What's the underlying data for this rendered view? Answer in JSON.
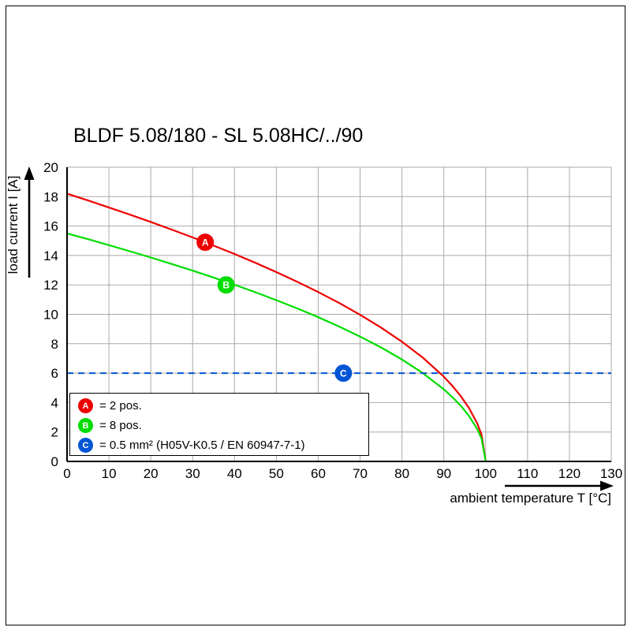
{
  "chart_data": {
    "type": "line",
    "title": "BLDF 5.08/180 - SL 5.08HC/../90",
    "xlabel": "ambient temperature T [°C]",
    "ylabel": "load current I [A]",
    "xlim": [
      0,
      130
    ],
    "ylim": [
      0,
      20
    ],
    "xticks": [
      0,
      10,
      20,
      30,
      40,
      50,
      60,
      70,
      80,
      90,
      100,
      110,
      120,
      130
    ],
    "yticks": [
      0,
      2,
      4,
      6,
      8,
      10,
      12,
      14,
      16,
      18,
      20
    ],
    "grid": true,
    "grid_color": "#a9a9a9",
    "axis_color": "#000000",
    "legend_position": "bottom-left",
    "series": [
      {
        "name": "A",
        "legend_label": "= 2 pos.",
        "color": "#ee0000",
        "marker_pos": {
          "x": 33,
          "y": 14.9
        },
        "points": [
          [
            0,
            18.2
          ],
          [
            5,
            17.74
          ],
          [
            10,
            17.26
          ],
          [
            15,
            16.78
          ],
          [
            20,
            16.28
          ],
          [
            25,
            15.76
          ],
          [
            30,
            15.23
          ],
          [
            35,
            14.67
          ],
          [
            40,
            14.1
          ],
          [
            45,
            13.5
          ],
          [
            50,
            12.87
          ],
          [
            55,
            12.21
          ],
          [
            60,
            11.51
          ],
          [
            65,
            10.77
          ],
          [
            70,
            9.97
          ],
          [
            75,
            9.1
          ],
          [
            80,
            8.14
          ],
          [
            85,
            7.05
          ],
          [
            90,
            5.76
          ],
          [
            92,
            5.15
          ],
          [
            94,
            4.46
          ],
          [
            96,
            3.64
          ],
          [
            98,
            2.57
          ],
          [
            99,
            1.82
          ],
          [
            100,
            0
          ]
        ]
      },
      {
        "name": "B",
        "legend_label": "= 8 pos.",
        "color": "#00dd00",
        "marker_pos": {
          "x": 38,
          "y": 12.0
        },
        "points": [
          [
            0,
            15.5
          ],
          [
            5,
            15.11
          ],
          [
            10,
            14.7
          ],
          [
            15,
            14.29
          ],
          [
            20,
            13.86
          ],
          [
            25,
            13.42
          ],
          [
            30,
            12.97
          ],
          [
            35,
            12.5
          ],
          [
            40,
            12.01
          ],
          [
            45,
            11.5
          ],
          [
            50,
            10.96
          ],
          [
            55,
            10.4
          ],
          [
            60,
            9.8
          ],
          [
            65,
            9.17
          ],
          [
            70,
            8.49
          ],
          [
            75,
            7.75
          ],
          [
            80,
            6.93
          ],
          [
            85,
            6.0
          ],
          [
            90,
            4.9
          ],
          [
            92,
            4.38
          ],
          [
            94,
            3.8
          ],
          [
            96,
            3.1
          ],
          [
            98,
            2.19
          ],
          [
            99,
            1.55
          ],
          [
            100,
            0
          ]
        ]
      },
      {
        "name": "C",
        "legend_label": "= 0.5 mm² (H05V-K0.5 / EN 60947-7-1)",
        "color": "#0055d4",
        "style": "dashed-hline",
        "y": 6,
        "marker_pos": {
          "x": 66,
          "y": 6.0
        }
      }
    ]
  }
}
